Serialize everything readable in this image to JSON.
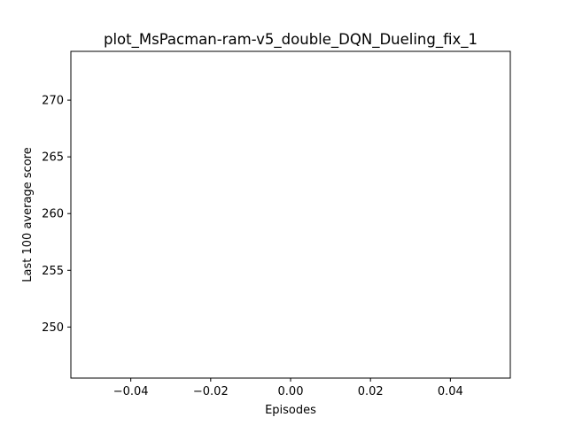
{
  "chart_data": {
    "type": "line",
    "title": "plot_MsPacman-ram-v5_double_DQN_Dueling_fix_1",
    "xlabel": "Episodes",
    "ylabel": "Last 100 average score",
    "xlim": [
      -0.055,
      0.055
    ],
    "ylim": [
      245.5,
      274.3
    ],
    "x_ticks": [
      -0.04,
      -0.02,
      0.0,
      0.02,
      0.04
    ],
    "x_tick_labels": [
      "−0.04",
      "−0.02",
      "0.00",
      "0.02",
      "0.04"
    ],
    "y_ticks": [
      250,
      255,
      260,
      265,
      270
    ],
    "y_tick_labels": [
      "250",
      "255",
      "260",
      "265",
      "270"
    ],
    "grid": false,
    "series": [
      {
        "values": []
      }
    ]
  }
}
